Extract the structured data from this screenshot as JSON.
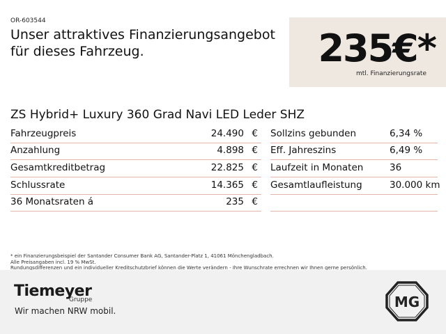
{
  "ref": "OR-603544",
  "headline": {
    "line1": "Unser attraktives Finanzierungsangebot",
    "line2": "für dieses Fahrzeug."
  },
  "price": {
    "value": "235€*",
    "label": "mtl. Finanzierungsrate"
  },
  "model": "ZS Hybrid+ Luxury 360 Grad Navi LED Leder SHZ",
  "left_table": [
    {
      "label": "Fahrzeugpreis",
      "value": "24.490",
      "currency": "€"
    },
    {
      "label": "Anzahlung",
      "value": "4.898",
      "currency": "€"
    },
    {
      "label": "Gesamtkreditbetrag",
      "value": "22.825",
      "currency": "€"
    },
    {
      "label": "Schlussrate",
      "value": "14.365",
      "currency": "€"
    },
    {
      "label": "36 Monatsraten á",
      "value": "235",
      "currency": "€"
    }
  ],
  "right_table": [
    {
      "label": "Sollzins gebunden",
      "value": "6,34 %"
    },
    {
      "label": "Eff. Jahreszins",
      "value": "6,49 %"
    },
    {
      "label": "Laufzeit in Monaten",
      "value": "36"
    },
    {
      "label": "Gesamtlaufleistung",
      "value": "30.000 km"
    }
  ],
  "footnotes": [
    "* ein Finanzierungsbeispiel der Santander Consumer Bank AG, Santander-Platz 1, 41061 Mönchengladbach.",
    "Alle Preisangaben incl. 19 % MwSt.",
    "Rundungsdifferenzen und ein individueller Kreditschutzbrief können die Werte verändern - Ihre Wunschrate errechnen wir Ihnen gerne persönlich."
  ],
  "footer": {
    "brand": "Tiemeyer",
    "brand_sub": "Gruppe",
    "slogan": "Wir machen NRW mobil.",
    "logo_text": "MG"
  },
  "colors": {
    "price_box": "#efe8e1",
    "row_divider": "#e5b5a9",
    "footer_bg": "#f1f1f1"
  },
  "icons": {
    "manufacturer_logo": "mg-logo-icon"
  }
}
